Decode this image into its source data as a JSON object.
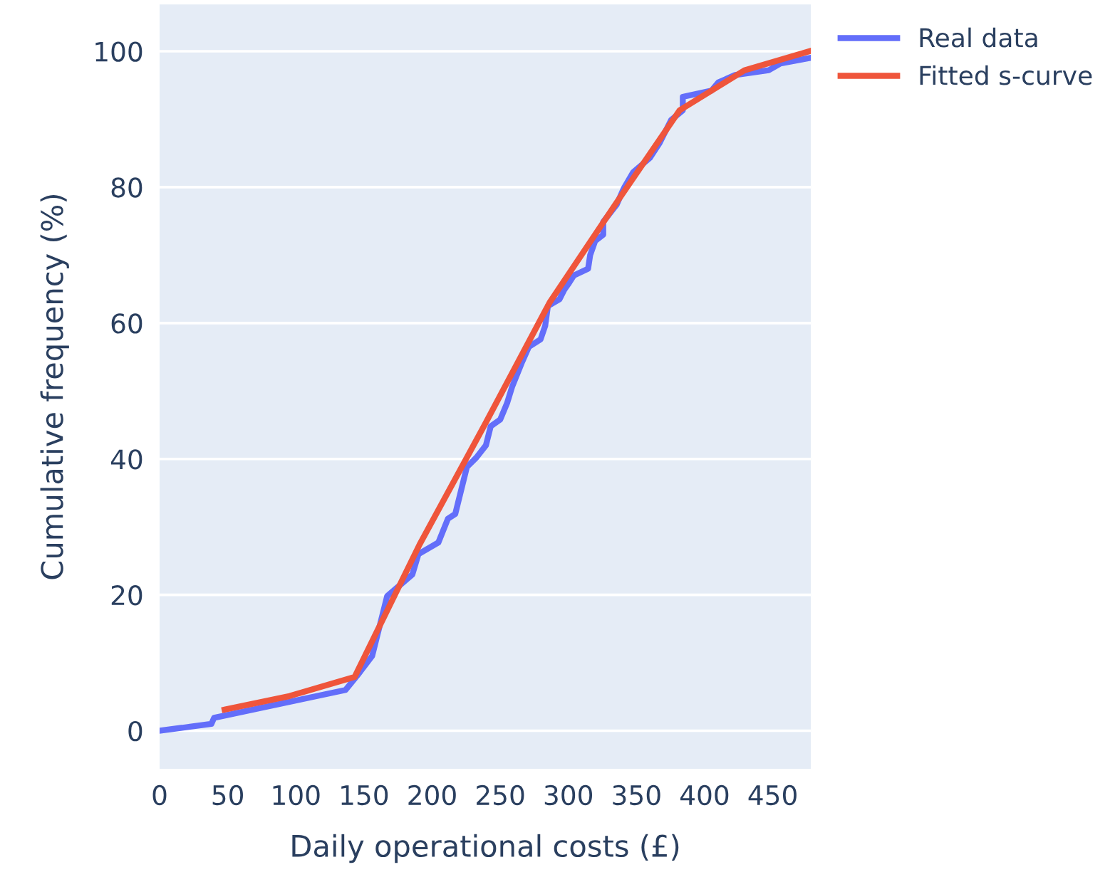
{
  "chart_data": {
    "type": "line",
    "xlabel": "Daily operational costs (£)",
    "ylabel": "Cumulative frequency (%)",
    "xlim": [
      0,
      478
    ],
    "xticks": [
      0,
      50,
      100,
      150,
      200,
      250,
      300,
      350,
      400,
      450
    ],
    "ylim": [
      -5.6,
      106.9
    ],
    "yticks": [
      0,
      20,
      40,
      60,
      80,
      100
    ],
    "grid": "y",
    "legend": "right",
    "marker": "none",
    "line_style": "solid",
    "series": [
      {
        "name": "Real data",
        "color": "#636efa",
        "x": [
          0,
          38,
          40,
          136.5,
          145,
          156,
          167,
          185.5,
          190,
          204.6,
          211.6,
          217,
          225.5,
          232.5,
          239.5,
          243,
          250,
          255,
          258.7,
          265.7,
          271,
          279.6,
          283,
          285,
          293.5,
          297,
          300.5,
          304,
          314.5,
          316,
          319.7,
          325.6,
          325.6,
          335.4,
          340.6,
          347.6,
          359.8,
          366.7,
          375.5,
          384,
          384,
          405,
          410,
          422.4,
          447,
          455.7,
          476.7
        ],
        "values": [
          0,
          1,
          1.9,
          6,
          8.1,
          11,
          19.8,
          23,
          26,
          27.7,
          31.2,
          31.9,
          38.8,
          40.2,
          42,
          44.8,
          45.8,
          48.2,
          50.6,
          54.1,
          56.5,
          57.6,
          59.6,
          62.5,
          63.5,
          64.9,
          65.9,
          67,
          68,
          70,
          72.1,
          73,
          74.9,
          77.4,
          79.8,
          82.2,
          84.3,
          86.4,
          89.9,
          91.3,
          93.3,
          94.2,
          95.4,
          96.5,
          97.2,
          98.2,
          99
        ]
      },
      {
        "name": "Fitted s-curve",
        "color": "#ef553b",
        "x": [
          47.7,
          95.4,
          143.1,
          190.8,
          238.5,
          286.2,
          333.9,
          381.6,
          429.3,
          477
        ],
        "values": [
          3.1,
          5.1,
          7.9,
          27.4,
          45,
          63,
          77.3,
          91.3,
          97.2,
          100
        ]
      }
    ]
  }
}
